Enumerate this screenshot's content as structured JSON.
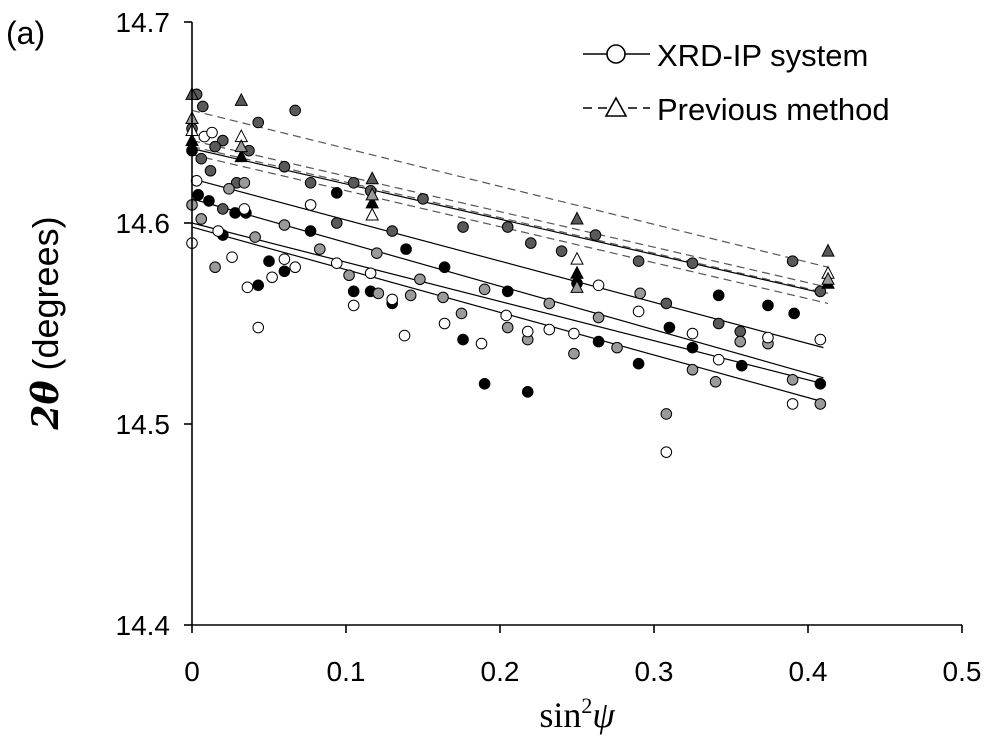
{
  "panel_label": "(a)",
  "legend": {
    "xrd_label": "XRD-IP system",
    "prev_label": "Previous method"
  },
  "chart_data": {
    "type": "scatter",
    "title": "",
    "xlabel": {
      "prefix": "sin",
      "sup": "2",
      "sym": "ψ"
    },
    "ylabel": {
      "sym": "2θ",
      "text": " (degrees)"
    },
    "xlim": [
      0,
      0.5
    ],
    "ylim": [
      14.4,
      14.7
    ],
    "x_ticks": [
      "0",
      "0.1",
      "0.2",
      "0.3",
      "0.4",
      "0.5"
    ],
    "y_ticks": [
      "14.4",
      "14.5",
      "14.6",
      "14.7"
    ],
    "grid": false,
    "legend_position": "top-right",
    "colors": {
      "black": "#000000",
      "dark_gray": "#595959",
      "mid_gray": "#9a9a9a",
      "white": "#ffffff",
      "solid_line": "#000000",
      "dashed_line": "#555555"
    },
    "circle_series": [
      {
        "color": "black",
        "points": [
          [
            0,
            14.636
          ],
          [
            0.004,
            14.614
          ],
          [
            0.011,
            14.611
          ],
          [
            0.02,
            14.594
          ],
          [
            0.028,
            14.605
          ],
          [
            0.035,
            14.605
          ],
          [
            0.043,
            14.569
          ],
          [
            0.05,
            14.581
          ],
          [
            0.06,
            14.576
          ],
          [
            0.077,
            14.596
          ],
          [
            0.094,
            14.615
          ],
          [
            0.105,
            14.566
          ],
          [
            0.116,
            14.566
          ],
          [
            0.13,
            14.56
          ],
          [
            0.139,
            14.587
          ],
          [
            0.164,
            14.578
          ],
          [
            0.176,
            14.542
          ],
          [
            0.19,
            14.52
          ],
          [
            0.218,
            14.516
          ],
          [
            0.205,
            14.566
          ],
          [
            0.25,
            14.57
          ],
          [
            0.264,
            14.541
          ],
          [
            0.29,
            14.53
          ],
          [
            0.31,
            14.548
          ],
          [
            0.325,
            14.538
          ],
          [
            0.342,
            14.564
          ],
          [
            0.357,
            14.529
          ],
          [
            0.374,
            14.559
          ],
          [
            0.391,
            14.555
          ],
          [
            0.408,
            14.52
          ]
        ]
      },
      {
        "color": "dark_gray",
        "points": [
          [
            0,
            14.647
          ],
          [
            0.003,
            14.664
          ],
          [
            0.007,
            14.658
          ],
          [
            0.012,
            14.626
          ],
          [
            0.02,
            14.607
          ],
          [
            0.029,
            14.62
          ],
          [
            0.037,
            14.636
          ],
          [
            0.043,
            14.65
          ],
          [
            0.067,
            14.656
          ],
          [
            0.077,
            14.62
          ],
          [
            0.094,
            14.6
          ],
          [
            0.105,
            14.62
          ],
          [
            0.116,
            14.616
          ],
          [
            0.13,
            14.596
          ],
          [
            0.15,
            14.612
          ],
          [
            0.176,
            14.598
          ],
          [
            0.205,
            14.598
          ],
          [
            0.22,
            14.59
          ],
          [
            0.24,
            14.586
          ],
          [
            0.262,
            14.594
          ],
          [
            0.29,
            14.581
          ],
          [
            0.308,
            14.56
          ],
          [
            0.325,
            14.58
          ],
          [
            0.342,
            14.55
          ],
          [
            0.356,
            14.546
          ],
          [
            0.39,
            14.581
          ],
          [
            0.408,
            14.566
          ],
          [
            0.02,
            14.641
          ],
          [
            0.06,
            14.628
          ],
          [
            0.006,
            14.632
          ],
          [
            0.015,
            14.638
          ]
        ]
      },
      {
        "color": "mid_gray",
        "points": [
          [
            0,
            14.609
          ],
          [
            0.006,
            14.602
          ],
          [
            0.015,
            14.578
          ],
          [
            0.024,
            14.617
          ],
          [
            0.034,
            14.62
          ],
          [
            0.041,
            14.593
          ],
          [
            0.06,
            14.599
          ],
          [
            0.083,
            14.587
          ],
          [
            0.102,
            14.574
          ],
          [
            0.121,
            14.565
          ],
          [
            0.142,
            14.564
          ],
          [
            0.163,
            14.563
          ],
          [
            0.175,
            14.555
          ],
          [
            0.19,
            14.567
          ],
          [
            0.205,
            14.548
          ],
          [
            0.218,
            14.542
          ],
          [
            0.232,
            14.56
          ],
          [
            0.248,
            14.535
          ],
          [
            0.264,
            14.553
          ],
          [
            0.276,
            14.538
          ],
          [
            0.291,
            14.565
          ],
          [
            0.308,
            14.505
          ],
          [
            0.325,
            14.527
          ],
          [
            0.34,
            14.521
          ],
          [
            0.356,
            14.541
          ],
          [
            0.374,
            14.54
          ],
          [
            0.39,
            14.522
          ],
          [
            0.408,
            14.51
          ],
          [
            0.12,
            14.585
          ],
          [
            0.148,
            14.572
          ]
        ]
      },
      {
        "color": "white",
        "points": [
          [
            0,
            14.59
          ],
          [
            0.003,
            14.621
          ],
          [
            0.008,
            14.643
          ],
          [
            0.013,
            14.645
          ],
          [
            0.017,
            14.596
          ],
          [
            0.026,
            14.583
          ],
          [
            0.034,
            14.607
          ],
          [
            0.043,
            14.548
          ],
          [
            0.052,
            14.573
          ],
          [
            0.06,
            14.582
          ],
          [
            0.067,
            14.578
          ],
          [
            0.077,
            14.609
          ],
          [
            0.094,
            14.58
          ],
          [
            0.105,
            14.559
          ],
          [
            0.116,
            14.575
          ],
          [
            0.13,
            14.562
          ],
          [
            0.138,
            14.544
          ],
          [
            0.164,
            14.55
          ],
          [
            0.188,
            14.54
          ],
          [
            0.204,
            14.554
          ],
          [
            0.218,
            14.546
          ],
          [
            0.232,
            14.547
          ],
          [
            0.248,
            14.545
          ],
          [
            0.264,
            14.569
          ],
          [
            0.29,
            14.556
          ],
          [
            0.308,
            14.486
          ],
          [
            0.325,
            14.545
          ],
          [
            0.342,
            14.532
          ],
          [
            0.374,
            14.543
          ],
          [
            0.39,
            14.51
          ],
          [
            0.408,
            14.542
          ],
          [
            0.036,
            14.568
          ]
        ]
      }
    ],
    "triangle_series": [
      {
        "color": "dark_gray",
        "points": [
          [
            0,
            14.664
          ],
          [
            0.032,
            14.661
          ],
          [
            0.117,
            14.622
          ],
          [
            0.25,
            14.602
          ],
          [
            0.413,
            14.586
          ]
        ]
      },
      {
        "color": "black",
        "points": [
          [
            0,
            14.641
          ],
          [
            0.032,
            14.633
          ],
          [
            0.117,
            14.61
          ],
          [
            0.25,
            14.575
          ],
          [
            0.413,
            14.57
          ]
        ]
      },
      {
        "color": "white",
        "points": [
          [
            0,
            14.646
          ],
          [
            0.032,
            14.643
          ],
          [
            0.117,
            14.604
          ],
          [
            0.25,
            14.582
          ],
          [
            0.413,
            14.575
          ]
        ]
      },
      {
        "color": "mid_gray",
        "points": [
          [
            0,
            14.652
          ],
          [
            0.032,
            14.638
          ],
          [
            0.117,
            14.614
          ],
          [
            0.25,
            14.568
          ],
          [
            0.413,
            14.572
          ]
        ]
      }
    ],
    "solid_fit_lines": [
      {
        "x": [
          0,
          0.41
        ],
        "y": [
          14.622,
          14.538
        ]
      },
      {
        "x": [
          0,
          0.41
        ],
        "y": [
          14.612,
          14.523
        ]
      },
      {
        "x": [
          0,
          0.41
        ],
        "y": [
          14.6,
          14.52
        ]
      },
      {
        "x": [
          0,
          0.41
        ],
        "y": [
          14.598,
          14.511
        ]
      },
      {
        "x": [
          0,
          0.41
        ],
        "y": [
          14.637,
          14.565
        ]
      }
    ],
    "dashed_fit_lines": [
      {
        "x": [
          0,
          0.413
        ],
        "y": [
          14.656,
          14.578
        ]
      },
      {
        "x": [
          0,
          0.413
        ],
        "y": [
          14.641,
          14.568
        ]
      },
      {
        "x": [
          0,
          0.413
        ],
        "y": [
          14.638,
          14.565
        ]
      },
      {
        "x": [
          0,
          0.413
        ],
        "y": [
          14.634,
          14.56
        ]
      }
    ]
  }
}
